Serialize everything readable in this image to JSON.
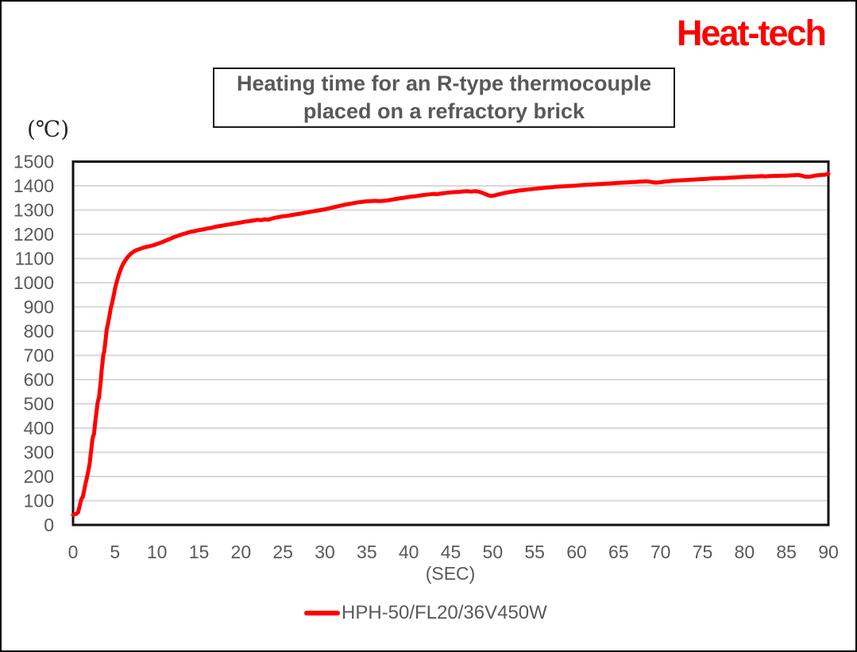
{
  "logo": {
    "text": "Heat-tech",
    "color": "#ff0000"
  },
  "title": {
    "line1": "Heating time for an R-type thermocouple",
    "line2": "placed on a refractory brick"
  },
  "axes": {
    "y_unit": "(℃)",
    "x_unit": "(SEC)"
  },
  "legend": {
    "label": "HPH-50/FL20/36V450W",
    "swatch_color": "#ff0000"
  },
  "chart_data": {
    "type": "line",
    "title": "Heating time for an R-type thermocouple placed on a refractory brick",
    "xlabel": "(SEC)",
    "ylabel": "(℃)",
    "xlim": [
      0,
      90
    ],
    "ylim": [
      0,
      1500
    ],
    "x_ticks": [
      0,
      5,
      10,
      15,
      20,
      25,
      30,
      35,
      40,
      45,
      50,
      55,
      60,
      65,
      70,
      75,
      80,
      85,
      90
    ],
    "y_ticks": [
      0,
      100,
      200,
      300,
      400,
      500,
      600,
      700,
      800,
      900,
      1000,
      1100,
      1200,
      1300,
      1400,
      1500
    ],
    "grid": "horizontal",
    "legend_position": "bottom",
    "colors": {
      "grid": "#d9d9d9",
      "axis": "#111111"
    },
    "series": [
      {
        "name": "HPH-50/FL20/36V450W",
        "color": "#ff0000",
        "points": [
          [
            0,
            42
          ],
          [
            0.2,
            44
          ],
          [
            0.4,
            46
          ],
          [
            0.6,
            52
          ],
          [
            0.75,
            72
          ],
          [
            0.9,
            95
          ],
          [
            1.0,
            108
          ],
          [
            1.15,
            115
          ],
          [
            1.3,
            138
          ],
          [
            1.45,
            165
          ],
          [
            1.6,
            188
          ],
          [
            1.75,
            212
          ],
          [
            1.85,
            228
          ],
          [
            2.0,
            258
          ],
          [
            2.1,
            292
          ],
          [
            2.2,
            318
          ],
          [
            2.3,
            352
          ],
          [
            2.4,
            368
          ],
          [
            2.5,
            375
          ],
          [
            2.6,
            412
          ],
          [
            2.7,
            442
          ],
          [
            2.8,
            468
          ],
          [
            2.9,
            498
          ],
          [
            3.0,
            516
          ],
          [
            3.1,
            528
          ],
          [
            3.2,
            562
          ],
          [
            3.3,
            594
          ],
          [
            3.4,
            636
          ],
          [
            3.5,
            668
          ],
          [
            3.6,
            700
          ],
          [
            3.7,
            714
          ],
          [
            3.8,
            742
          ],
          [
            3.9,
            772
          ],
          [
            4.0,
            806
          ],
          [
            4.1,
            820
          ],
          [
            4.2,
            838
          ],
          [
            4.35,
            866
          ],
          [
            4.5,
            898
          ],
          [
            4.6,
            908
          ],
          [
            4.75,
            932
          ],
          [
            4.9,
            958
          ],
          [
            5.0,
            976
          ],
          [
            5.2,
            1002
          ],
          [
            5.4,
            1028
          ],
          [
            5.6,
            1048
          ],
          [
            5.8,
            1066
          ],
          [
            6.0,
            1080
          ],
          [
            6.3,
            1096
          ],
          [
            6.6,
            1110
          ],
          [
            6.9,
            1120
          ],
          [
            7.2,
            1128
          ],
          [
            7.5,
            1134
          ],
          [
            8.0,
            1140
          ],
          [
            8.5,
            1146
          ],
          [
            9.0,
            1150
          ],
          [
            9.5,
            1154
          ],
          [
            10,
            1160
          ],
          [
            10.5,
            1166
          ],
          [
            11,
            1173
          ],
          [
            11.5,
            1180
          ],
          [
            12,
            1188
          ],
          [
            12.5,
            1194
          ],
          [
            13,
            1200
          ],
          [
            13.5,
            1205
          ],
          [
            14,
            1210
          ],
          [
            14.5,
            1213
          ],
          [
            15,
            1217
          ],
          [
            15.5,
            1220
          ],
          [
            16,
            1224
          ],
          [
            16.5,
            1227
          ],
          [
            17,
            1231
          ],
          [
            17.5,
            1234
          ],
          [
            18,
            1237
          ],
          [
            18.5,
            1240
          ],
          [
            19,
            1243
          ],
          [
            19.5,
            1246
          ],
          [
            20,
            1249
          ],
          [
            20.5,
            1252
          ],
          [
            21,
            1254
          ],
          [
            21.5,
            1257
          ],
          [
            22,
            1260
          ],
          [
            22.4,
            1258
          ],
          [
            22.8,
            1262
          ],
          [
            23.2,
            1260
          ],
          [
            23.6,
            1264
          ],
          [
            24,
            1268
          ],
          [
            24.5,
            1271
          ],
          [
            25,
            1274
          ],
          [
            25.5,
            1276
          ],
          [
            26,
            1279
          ],
          [
            26.5,
            1282
          ],
          [
            27,
            1285
          ],
          [
            27.5,
            1288
          ],
          [
            28,
            1291
          ],
          [
            28.5,
            1294
          ],
          [
            29,
            1297
          ],
          [
            29.5,
            1300
          ],
          [
            30,
            1303
          ],
          [
            30.5,
            1307
          ],
          [
            31,
            1311
          ],
          [
            31.5,
            1315
          ],
          [
            32,
            1319
          ],
          [
            32.5,
            1323
          ],
          [
            33,
            1326
          ],
          [
            33.5,
            1329
          ],
          [
            34,
            1332
          ],
          [
            34.5,
            1334
          ],
          [
            35,
            1336
          ],
          [
            35.5,
            1337
          ],
          [
            36,
            1338
          ],
          [
            36.5,
            1337
          ],
          [
            37,
            1338
          ],
          [
            37.5,
            1340
          ],
          [
            38,
            1343
          ],
          [
            38.5,
            1346
          ],
          [
            39,
            1349
          ],
          [
            39.5,
            1351
          ],
          [
            40,
            1354
          ],
          [
            40.5,
            1356
          ],
          [
            41,
            1358
          ],
          [
            41.5,
            1361
          ],
          [
            42,
            1363
          ],
          [
            42.5,
            1365
          ],
          [
            43,
            1367
          ],
          [
            43.3,
            1365
          ],
          [
            43.6,
            1367
          ],
          [
            44,
            1369
          ],
          [
            44.5,
            1371
          ],
          [
            45,
            1373
          ],
          [
            45.5,
            1374
          ],
          [
            46,
            1375
          ],
          [
            46.5,
            1377
          ],
          [
            47,
            1378
          ],
          [
            47.4,
            1376
          ],
          [
            47.8,
            1378
          ],
          [
            48.2,
            1377
          ],
          [
            48.6,
            1373
          ],
          [
            49,
            1368
          ],
          [
            49.4,
            1362
          ],
          [
            49.8,
            1358
          ],
          [
            50.2,
            1360
          ],
          [
            50.6,
            1364
          ],
          [
            51,
            1367
          ],
          [
            51.5,
            1371
          ],
          [
            52,
            1374
          ],
          [
            52.5,
            1377
          ],
          [
            53,
            1380
          ],
          [
            53.5,
            1382
          ],
          [
            54,
            1384
          ],
          [
            54.5,
            1386
          ],
          [
            55,
            1388
          ],
          [
            55.5,
            1390
          ],
          [
            56,
            1391
          ],
          [
            56.5,
            1393
          ],
          [
            57,
            1394
          ],
          [
            57.5,
            1396
          ],
          [
            58,
            1397
          ],
          [
            58.5,
            1398
          ],
          [
            59,
            1399
          ],
          [
            59.5,
            1400
          ],
          [
            60,
            1401
          ],
          [
            60.5,
            1403
          ],
          [
            61,
            1404
          ],
          [
            61.5,
            1405
          ],
          [
            62,
            1406
          ],
          [
            62.5,
            1407
          ],
          [
            63,
            1408
          ],
          [
            63.5,
            1409
          ],
          [
            64,
            1410
          ],
          [
            64.5,
            1411
          ],
          [
            65,
            1412
          ],
          [
            65.5,
            1413
          ],
          [
            66,
            1414
          ],
          [
            66.5,
            1415
          ],
          [
            67,
            1416
          ],
          [
            67.5,
            1417
          ],
          [
            68,
            1418
          ],
          [
            68.3,
            1419
          ],
          [
            68.7,
            1417
          ],
          [
            69,
            1415
          ],
          [
            69.4,
            1413
          ],
          [
            69.8,
            1414
          ],
          [
            70.2,
            1416
          ],
          [
            70.6,
            1418
          ],
          [
            71,
            1419
          ],
          [
            71.5,
            1421
          ],
          [
            72,
            1422
          ],
          [
            72.5,
            1423
          ],
          [
            73,
            1424
          ],
          [
            73.5,
            1425
          ],
          [
            74,
            1426
          ],
          [
            74.5,
            1427
          ],
          [
            75,
            1428
          ],
          [
            75.5,
            1429
          ],
          [
            76,
            1430
          ],
          [
            76.5,
            1431
          ],
          [
            77,
            1432
          ],
          [
            77.5,
            1432
          ],
          [
            78,
            1433
          ],
          [
            78.5,
            1434
          ],
          [
            79,
            1435
          ],
          [
            79.5,
            1436
          ],
          [
            80,
            1437
          ],
          [
            80.5,
            1438
          ],
          [
            81,
            1438
          ],
          [
            81.5,
            1439
          ],
          [
            82,
            1440
          ],
          [
            82.5,
            1439
          ],
          [
            83,
            1440
          ],
          [
            83.5,
            1441
          ],
          [
            84,
            1441
          ],
          [
            84.5,
            1442
          ],
          [
            85,
            1442
          ],
          [
            85.5,
            1443
          ],
          [
            86,
            1444
          ],
          [
            86.4,
            1445
          ],
          [
            86.8,
            1442
          ],
          [
            87.2,
            1438
          ],
          [
            87.6,
            1437
          ],
          [
            88,
            1439
          ],
          [
            88.4,
            1442
          ],
          [
            88.8,
            1444
          ],
          [
            89.2,
            1445
          ],
          [
            89.6,
            1446
          ],
          [
            90,
            1450
          ]
        ]
      }
    ]
  }
}
